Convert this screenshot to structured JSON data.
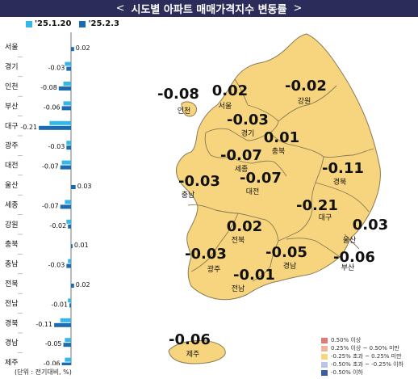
{
  "title": "시도별 아파트 매매가격지수 변동률",
  "title_left_glyph": "<",
  "title_right_glyph": ">",
  "chart_data": {
    "type": "bar",
    "orientation": "horizontal",
    "categories": [
      "서울",
      "경기",
      "인천",
      "부산",
      "대구",
      "광주",
      "대전",
      "울산",
      "세종",
      "강원",
      "충북",
      "충남",
      "전북",
      "전남",
      "경북",
      "경남",
      "제주"
    ],
    "series": [
      {
        "name": "'25.1.20",
        "color": "#35b8e8",
        "values": [
          0.0,
          -0.04,
          -0.05,
          -0.05,
          -0.14,
          -0.03,
          -0.06,
          0.0,
          -0.04,
          -0.03,
          0.0,
          -0.02,
          0.0,
          -0.02,
          -0.07,
          -0.04,
          -0.04
        ]
      },
      {
        "name": "'25.2.3",
        "color": "#1a6bb0",
        "values": [
          0.02,
          -0.03,
          -0.08,
          -0.06,
          -0.21,
          -0.03,
          -0.07,
          0.03,
          -0.07,
          -0.02,
          0.01,
          -0.03,
          0.02,
          -0.01,
          -0.11,
          -0.05,
          -0.06
        ]
      }
    ],
    "value_labels": [
      "0.02",
      "-0.03",
      "-0.08",
      "-0.06",
      "-0.21",
      "-0.03",
      "-0.07",
      "0.03",
      "-0.07",
      "-0.02",
      "0.01",
      "-0.03",
      "0.02",
      "-0.01",
      "-0.11",
      "-0.05",
      "-0.06"
    ],
    "legend_placement": "top-left",
    "grid": false
  },
  "map": {
    "regions": [
      {
        "name": "인천",
        "value": "-0.08"
      },
      {
        "name": "서울",
        "value": "0.02"
      },
      {
        "name": "강원",
        "value": "-0.02"
      },
      {
        "name": "경기",
        "value": "-0.03"
      },
      {
        "name": "충북",
        "value": "0.01"
      },
      {
        "name": "세종",
        "value": "-0.07"
      },
      {
        "name": "충남",
        "value": "-0.03"
      },
      {
        "name": "대전",
        "value": "-0.07"
      },
      {
        "name": "경북",
        "value": "-0.11"
      },
      {
        "name": "대구",
        "value": "-0.21"
      },
      {
        "name": "전북",
        "value": "0.02"
      },
      {
        "name": "울산",
        "value": "0.03"
      },
      {
        "name": "광주",
        "value": "-0.03"
      },
      {
        "name": "경남",
        "value": "-0.05"
      },
      {
        "name": "부산",
        "value": "-0.06"
      },
      {
        "name": "전남",
        "value": "-0.01"
      },
      {
        "name": "제주",
        "value": "-0.06"
      }
    ],
    "fill_color": "#f7d57e",
    "border_color": "#8a7a55",
    "legend": [
      {
        "label": "0.50% 이상",
        "color": "#e07a7a"
      },
      {
        "label": "0.25% 이상 ~ 0.50% 미만",
        "color": "#f0b49a"
      },
      {
        "label": "-0.25% 초과 ~ 0.25% 미만",
        "color": "#f7d57e"
      },
      {
        "label": "-0.50% 초과 ~ -0.25% 이하",
        "color": "#b7c6e6"
      },
      {
        "label": "-0.50% 이하",
        "color": "#3b5aa8"
      }
    ]
  },
  "unit_note": "(단위 : 전기대비, %)"
}
